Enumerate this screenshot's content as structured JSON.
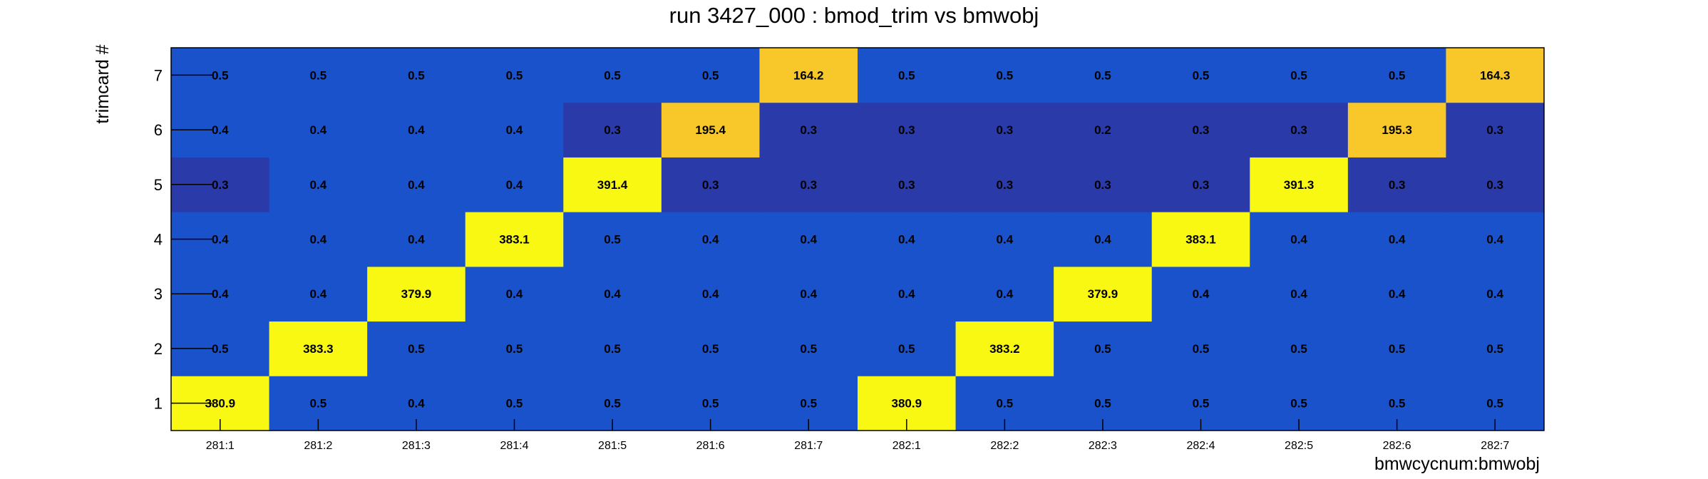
{
  "chart_data": {
    "type": "heatmap",
    "title": "run 3427_000 : bmod_trim vs bmwobj",
    "xlabel": "bmwcycnum:bmwobj",
    "ylabel": "trimcard #",
    "x_categories": [
      "281:1",
      "281:2",
      "281:3",
      "281:4",
      "281:5",
      "281:6",
      "281:7",
      "282:1",
      "282:2",
      "282:3",
      "282:4",
      "282:5",
      "282:6",
      "282:7"
    ],
    "y_categories": [
      "1",
      "2",
      "3",
      "4",
      "5",
      "6",
      "7"
    ],
    "values": [
      [
        "380.9",
        "0.5",
        "0.4",
        "0.5",
        "0.5",
        "0.5",
        "0.5",
        "380.9",
        "0.5",
        "0.5",
        "0.5",
        "0.5",
        "0.5",
        "0.5"
      ],
      [
        "0.5",
        "383.3",
        "0.5",
        "0.5",
        "0.5",
        "0.5",
        "0.5",
        "0.5",
        "383.2",
        "0.5",
        "0.5",
        "0.5",
        "0.5",
        "0.5"
      ],
      [
        "0.4",
        "0.4",
        "379.9",
        "0.4",
        "0.4",
        "0.4",
        "0.4",
        "0.4",
        "0.4",
        "379.9",
        "0.4",
        "0.4",
        "0.4",
        "0.4"
      ],
      [
        "0.4",
        "0.4",
        "0.4",
        "383.1",
        "0.5",
        "0.4",
        "0.4",
        "0.4",
        "0.4",
        "0.4",
        "383.1",
        "0.4",
        "0.4",
        "0.4"
      ],
      [
        "0.3",
        "0.4",
        "0.4",
        "0.4",
        "391.4",
        "0.3",
        "0.3",
        "0.3",
        "0.3",
        "0.3",
        "0.3",
        "391.3",
        "0.3",
        "0.3"
      ],
      [
        "0.4",
        "0.4",
        "0.4",
        "0.4",
        "0.3",
        "195.4",
        "0.3",
        "0.3",
        "0.3",
        "0.2",
        "0.3",
        "0.3",
        "195.3",
        "0.3"
      ],
      [
        "0.5",
        "0.5",
        "0.5",
        "0.5",
        "0.5",
        "0.5",
        "164.2",
        "0.5",
        "0.5",
        "0.5",
        "0.5",
        "0.5",
        "0.5",
        "164.3"
      ]
    ],
    "colors": {
      "low_dark": "#2a3aa8",
      "low": "#1a52cc",
      "mid_high": "#f8c82a",
      "high": "#f8f812"
    }
  }
}
